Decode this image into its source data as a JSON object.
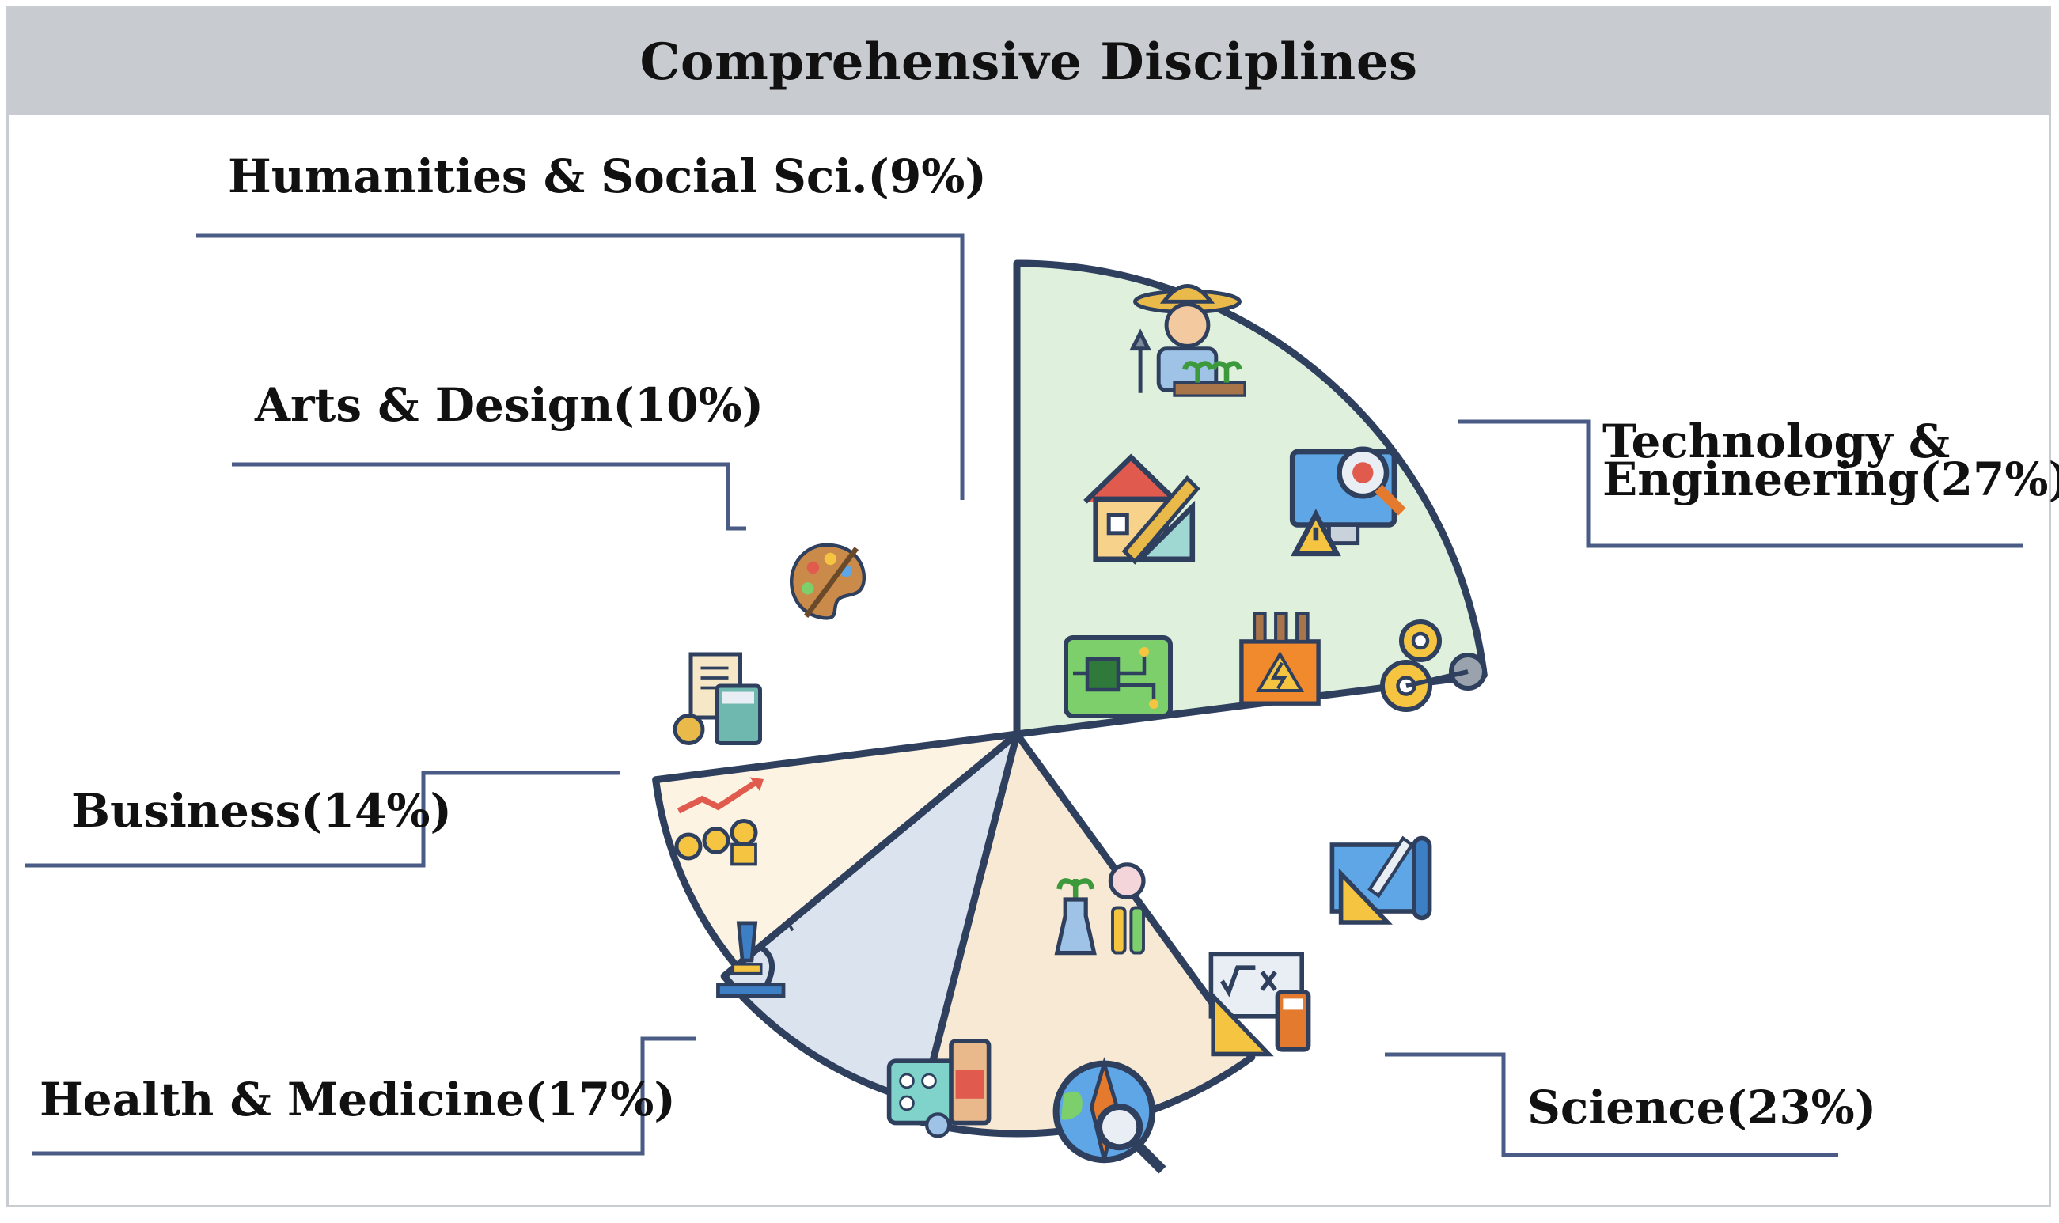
{
  "header": {
    "title": "Comprehensive Disciplines"
  },
  "colors": {
    "outline": "#2f3f5e",
    "leader": "#4a5c86",
    "science": "#dff1dc",
    "health": "#ffffff",
    "business": "#f8e9d4",
    "arts": "#dbe3ef",
    "humanities": "#fcf3e3",
    "technology": "#ffffff"
  },
  "chart_data": {
    "type": "pie",
    "title": "Comprehensive Disciplines",
    "series": [
      {
        "name": "Science",
        "label": "Science(23%)",
        "value": 23,
        "color": "#dff1dc",
        "icons": [
          "plant-flask-icon",
          "chemistry-flasks-icon",
          "blueprint-icon",
          "math-board-icon",
          "globe-search-icon"
        ]
      },
      {
        "name": "Health & Medicine",
        "label": "Health & Medicine(17%)",
        "value": 17,
        "color": "#ffffff",
        "icons": [
          "hospital-bed-icon",
          "microscope-icon",
          "medical-report-icon",
          "pills-icon"
        ]
      },
      {
        "name": "Business",
        "label": "Business(14%)",
        "value": 14,
        "color": "#f8e9d4",
        "icons": [
          "invoice-calculator-icon",
          "pie-coin-icon",
          "growth-coins-icon"
        ]
      },
      {
        "name": "Arts & Design",
        "label": "Arts & Design(10%)",
        "value": 10,
        "color": "#dbe3ef",
        "icons": [
          "palette-icon",
          "golden-ratio-icon"
        ]
      },
      {
        "name": "Humanities & Social Sci.",
        "label": "Humanities & Social Sci.(9%)",
        "value": 9,
        "color": "#fcf3e3",
        "icons": [
          "social-network-icon"
        ]
      },
      {
        "name": "Technology & Engineering",
        "label_lines": [
          "Technology &",
          "Engineering(27%)"
        ],
        "value": 27,
        "color": "#ffffff",
        "icons": [
          "farmer-icon",
          "house-design-icon",
          "computer-bug-icon",
          "circuit-board-icon",
          "transformer-icon",
          "gears-icon"
        ]
      }
    ]
  }
}
